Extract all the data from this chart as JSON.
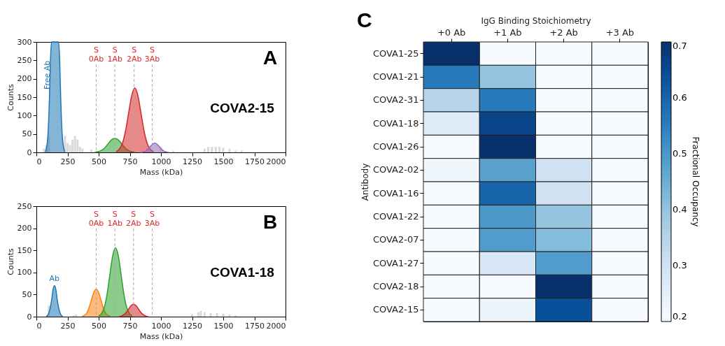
{
  "chart_data": [
    {
      "type": "area",
      "xlabel": "Mass (kDa)",
      "ylabel": "Counts",
      "xlim": [
        0,
        2000
      ],
      "xticks": [
        0,
        250,
        500,
        750,
        1000,
        1250,
        1500,
        1750,
        2000
      ],
      "ylim": [
        0,
        300
      ],
      "yticks": [
        0,
        50,
        100,
        150,
        200,
        250,
        300
      ],
      "grid": false,
      "series": [
        {
          "type": "bar",
          "color": "#d9d9d9",
          "x": [
            60,
            80,
            100,
            230,
            250,
            270,
            290,
            310,
            330,
            350,
            370,
            440,
            1000,
            1100,
            1350,
            1380,
            1410,
            1440,
            1470,
            1500,
            1550,
            1600,
            1650
          ],
          "values": [
            10,
            20,
            45,
            45,
            25,
            20,
            35,
            45,
            35,
            15,
            10,
            8,
            15,
            5,
            10,
            15,
            15,
            15,
            15,
            12,
            10,
            5,
            5
          ]
        },
        {
          "color": "#1f77b4",
          "x": [
            70,
            80,
            95,
            105,
            113,
            122,
            178,
            187,
            195,
            205,
            220,
            230
          ],
          "values": [
            2,
            10,
            60,
            150,
            250,
            300,
            300,
            250,
            150,
            60,
            10,
            2
          ]
        },
        {
          "color": "#2ca02c",
          "x": [
            465,
            492.5,
            520,
            547.5,
            575,
            602.5,
            630,
            657.5,
            685,
            712.5,
            740,
            767.5,
            795
          ],
          "values": [
            0,
            2,
            5,
            12,
            23,
            34,
            38,
            34,
            23,
            12,
            5,
            2,
            0
          ]
        },
        {
          "color": "#d62728",
          "x": [
            640,
            665,
            690,
            715,
            740,
            765,
            790,
            815,
            840,
            865,
            890,
            915,
            940
          ],
          "values": [
            2,
            8,
            24,
            57,
            106,
            154,
            175,
            154,
            106,
            57,
            24,
            8,
            2
          ]
        },
        {
          "color": "#9467bd",
          "x": [
            836,
            855,
            874,
            893,
            912,
            931,
            950,
            969,
            988,
            1007,
            1026,
            1045,
            1064
          ],
          "values": [
            0,
            1,
            3,
            8,
            15,
            22,
            25,
            22,
            15,
            8,
            3,
            1,
            0
          ]
        }
      ],
      "ref_lines": [
        {
          "axis": "x",
          "value": 480,
          "label": "S\n0Ab",
          "color": "#aaaaaa",
          "line_style": "dashed"
        },
        {
          "axis": "x",
          "value": 630,
          "label": "S\n1Ab",
          "color": "#aaaaaa",
          "line_style": "dashed"
        },
        {
          "axis": "x",
          "value": 785,
          "label": "S\n2Ab",
          "color": "#aaaaaa",
          "line_style": "dashed"
        },
        {
          "axis": "x",
          "value": 930,
          "label": "S\n3Ab",
          "color": "#aaaaaa",
          "line_style": "dashed"
        }
      ],
      "annotations": [
        "Free Ab",
        "A",
        "COVA2-15"
      ]
    },
    {
      "type": "area",
      "xlabel": "Mass (kDa)",
      "ylabel": "Counts",
      "xlim": [
        0,
        2000
      ],
      "xticks": [
        0,
        250,
        500,
        750,
        1000,
        1250,
        1500,
        1750,
        2000
      ],
      "ylim": [
        0,
        250
      ],
      "yticks": [
        0,
        50,
        100,
        150,
        200,
        250
      ],
      "grid": false,
      "series": [
        {
          "type": "bar",
          "color": "#d9d9d9",
          "x": [
            100,
            300,
            320,
            1250,
            1300,
            1320,
            1350,
            1400,
            1450,
            1500,
            1550,
            1600
          ],
          "values": [
            25,
            3,
            5,
            5,
            10,
            13,
            10,
            8,
            8,
            7,
            5,
            3
          ]
        },
        {
          "color": "#1f77b4",
          "x": [
            79,
            90,
            101,
            112,
            123,
            134,
            145,
            156,
            167,
            178,
            189,
            200,
            211
          ],
          "values": [
            1,
            3,
            9,
            21,
            39,
            62,
            70,
            62,
            39,
            21,
            9,
            3,
            1
          ]
        },
        {
          "color": "#ff7f0e",
          "x": [
            366,
            385,
            404,
            423,
            442,
            461,
            480,
            499,
            518,
            537,
            556,
            575,
            594
          ],
          "values": [
            1,
            3,
            8,
            20,
            38,
            55,
            62,
            55,
            38,
            20,
            8,
            3,
            1
          ]
        },
        {
          "color": "#2ca02c",
          "x": [
            500,
            522.5,
            545,
            567.5,
            590,
            612.5,
            635,
            657.5,
            680,
            702.5,
            725,
            747.5,
            770
          ],
          "values": [
            2,
            7,
            21,
            51,
            95,
            138,
            156,
            138,
            95,
            51,
            21,
            7,
            2
          ]
        },
        {
          "color": "#d62728",
          "x": [
            660,
            680,
            700,
            720,
            740,
            760,
            780,
            800,
            820,
            840,
            860,
            880,
            900
          ],
          "values": [
            0,
            1,
            4,
            9,
            17,
            25,
            28,
            25,
            17,
            9,
            4,
            1,
            0
          ]
        }
      ],
      "ref_lines": [
        {
          "axis": "x",
          "value": 480,
          "label": "S\n0Ab",
          "color": "#aaaaaa",
          "line_style": "dashed"
        },
        {
          "axis": "x",
          "value": 630,
          "label": "S\n1Ab",
          "color": "#aaaaaa",
          "line_style": "dashed"
        },
        {
          "axis": "x",
          "value": 780,
          "label": "S\n2Ab",
          "color": "#aaaaaa",
          "line_style": "dashed"
        },
        {
          "axis": "x",
          "value": 930,
          "label": "S\n3Ab",
          "color": "#aaaaaa",
          "line_style": "dashed"
        }
      ],
      "annotations": [
        "Ab",
        "B",
        "COVA1-18"
      ]
    },
    {
      "type": "heatmap",
      "xlabel": "IgG Binding Stoichiometry",
      "ylabel": "Antibody",
      "clabel": "Fractional Occupancy",
      "categories": [
        "+0 Ab",
        "+1 Ab",
        "+2 Ab",
        "+3 Ab"
      ],
      "y_categories": [
        "COVA1-25",
        "COVA1-21",
        "COVA2-31",
        "COVA1-18",
        "COVA1-26",
        "COVA2-02",
        "COVA1-16",
        "COVA1-22",
        "COVA2-07",
        "COVA1-27",
        "COVA2-18",
        "COVA2-15"
      ],
      "cells": [
        [
          0.7,
          0.2,
          0.2,
          0.2
        ],
        [
          0.56,
          0.4,
          0.2,
          0.2
        ],
        [
          0.35,
          0.56,
          0.2,
          0.2
        ],
        [
          0.26,
          0.66,
          0.2,
          0.2
        ],
        [
          0.2,
          0.7,
          0.2,
          0.2
        ],
        [
          0.22,
          0.48,
          0.3,
          0.2
        ],
        [
          0.2,
          0.6,
          0.3,
          0.2
        ],
        [
          0.2,
          0.5,
          0.4,
          0.2
        ],
        [
          0.2,
          0.49,
          0.42,
          0.2
        ],
        [
          0.2,
          0.28,
          0.49,
          0.2
        ],
        [
          0.2,
          0.2,
          0.7,
          0.2
        ],
        [
          0.2,
          0.23,
          0.64,
          0.2
        ]
      ],
      "clim": [
        0.2,
        0.7
      ],
      "cticks": [
        0.2,
        0.3,
        0.4,
        0.5,
        0.6,
        0.7
      ],
      "annotations": [
        "C"
      ]
    }
  ]
}
